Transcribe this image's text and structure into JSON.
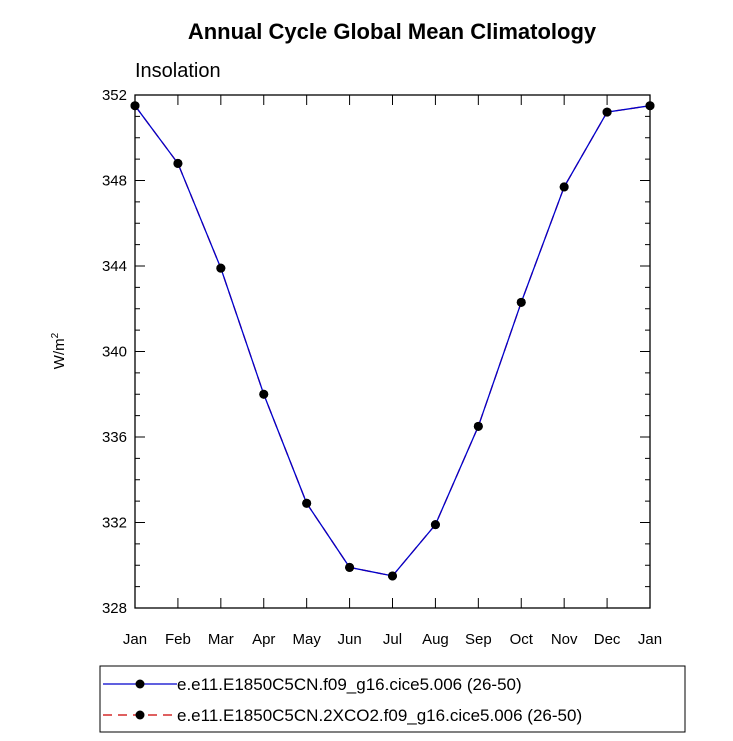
{
  "chart_data": {
    "type": "line",
    "title": "Annual Cycle Global Mean Climatology",
    "subtitle": "Insolation",
    "ylabel": "W/m",
    "ylabel_superscript": "2",
    "categories": [
      "Jan",
      "Feb",
      "Mar",
      "Apr",
      "May",
      "Jun",
      "Jul",
      "Aug",
      "Sep",
      "Oct",
      "Nov",
      "Dec",
      "Jan"
    ],
    "ylim": [
      328,
      352
    ],
    "yticks": [
      "328",
      "332",
      "336",
      "340",
      "344",
      "348",
      "352"
    ],
    "series": [
      {
        "name": "e.e11.E1850C5CN.f09_g16.cice5.006 (26-50)",
        "color": "#0000cc",
        "dash": "solid",
        "values": [
          351.5,
          348.8,
          343.9,
          338.0,
          332.9,
          329.9,
          329.5,
          331.9,
          336.5,
          342.3,
          347.7,
          351.2,
          351.5
        ]
      },
      {
        "name": "e.e11.E1850C5CN.2XCO2.f09_g16.cice5.006 (26-50)",
        "color": "#cc0000",
        "dash": "dashed",
        "values": [
          351.5,
          348.8,
          343.9,
          338.0,
          332.9,
          329.9,
          329.5,
          331.9,
          336.5,
          342.3,
          347.7,
          351.2,
          351.5
        ]
      }
    ],
    "marker_color": "#000000"
  }
}
